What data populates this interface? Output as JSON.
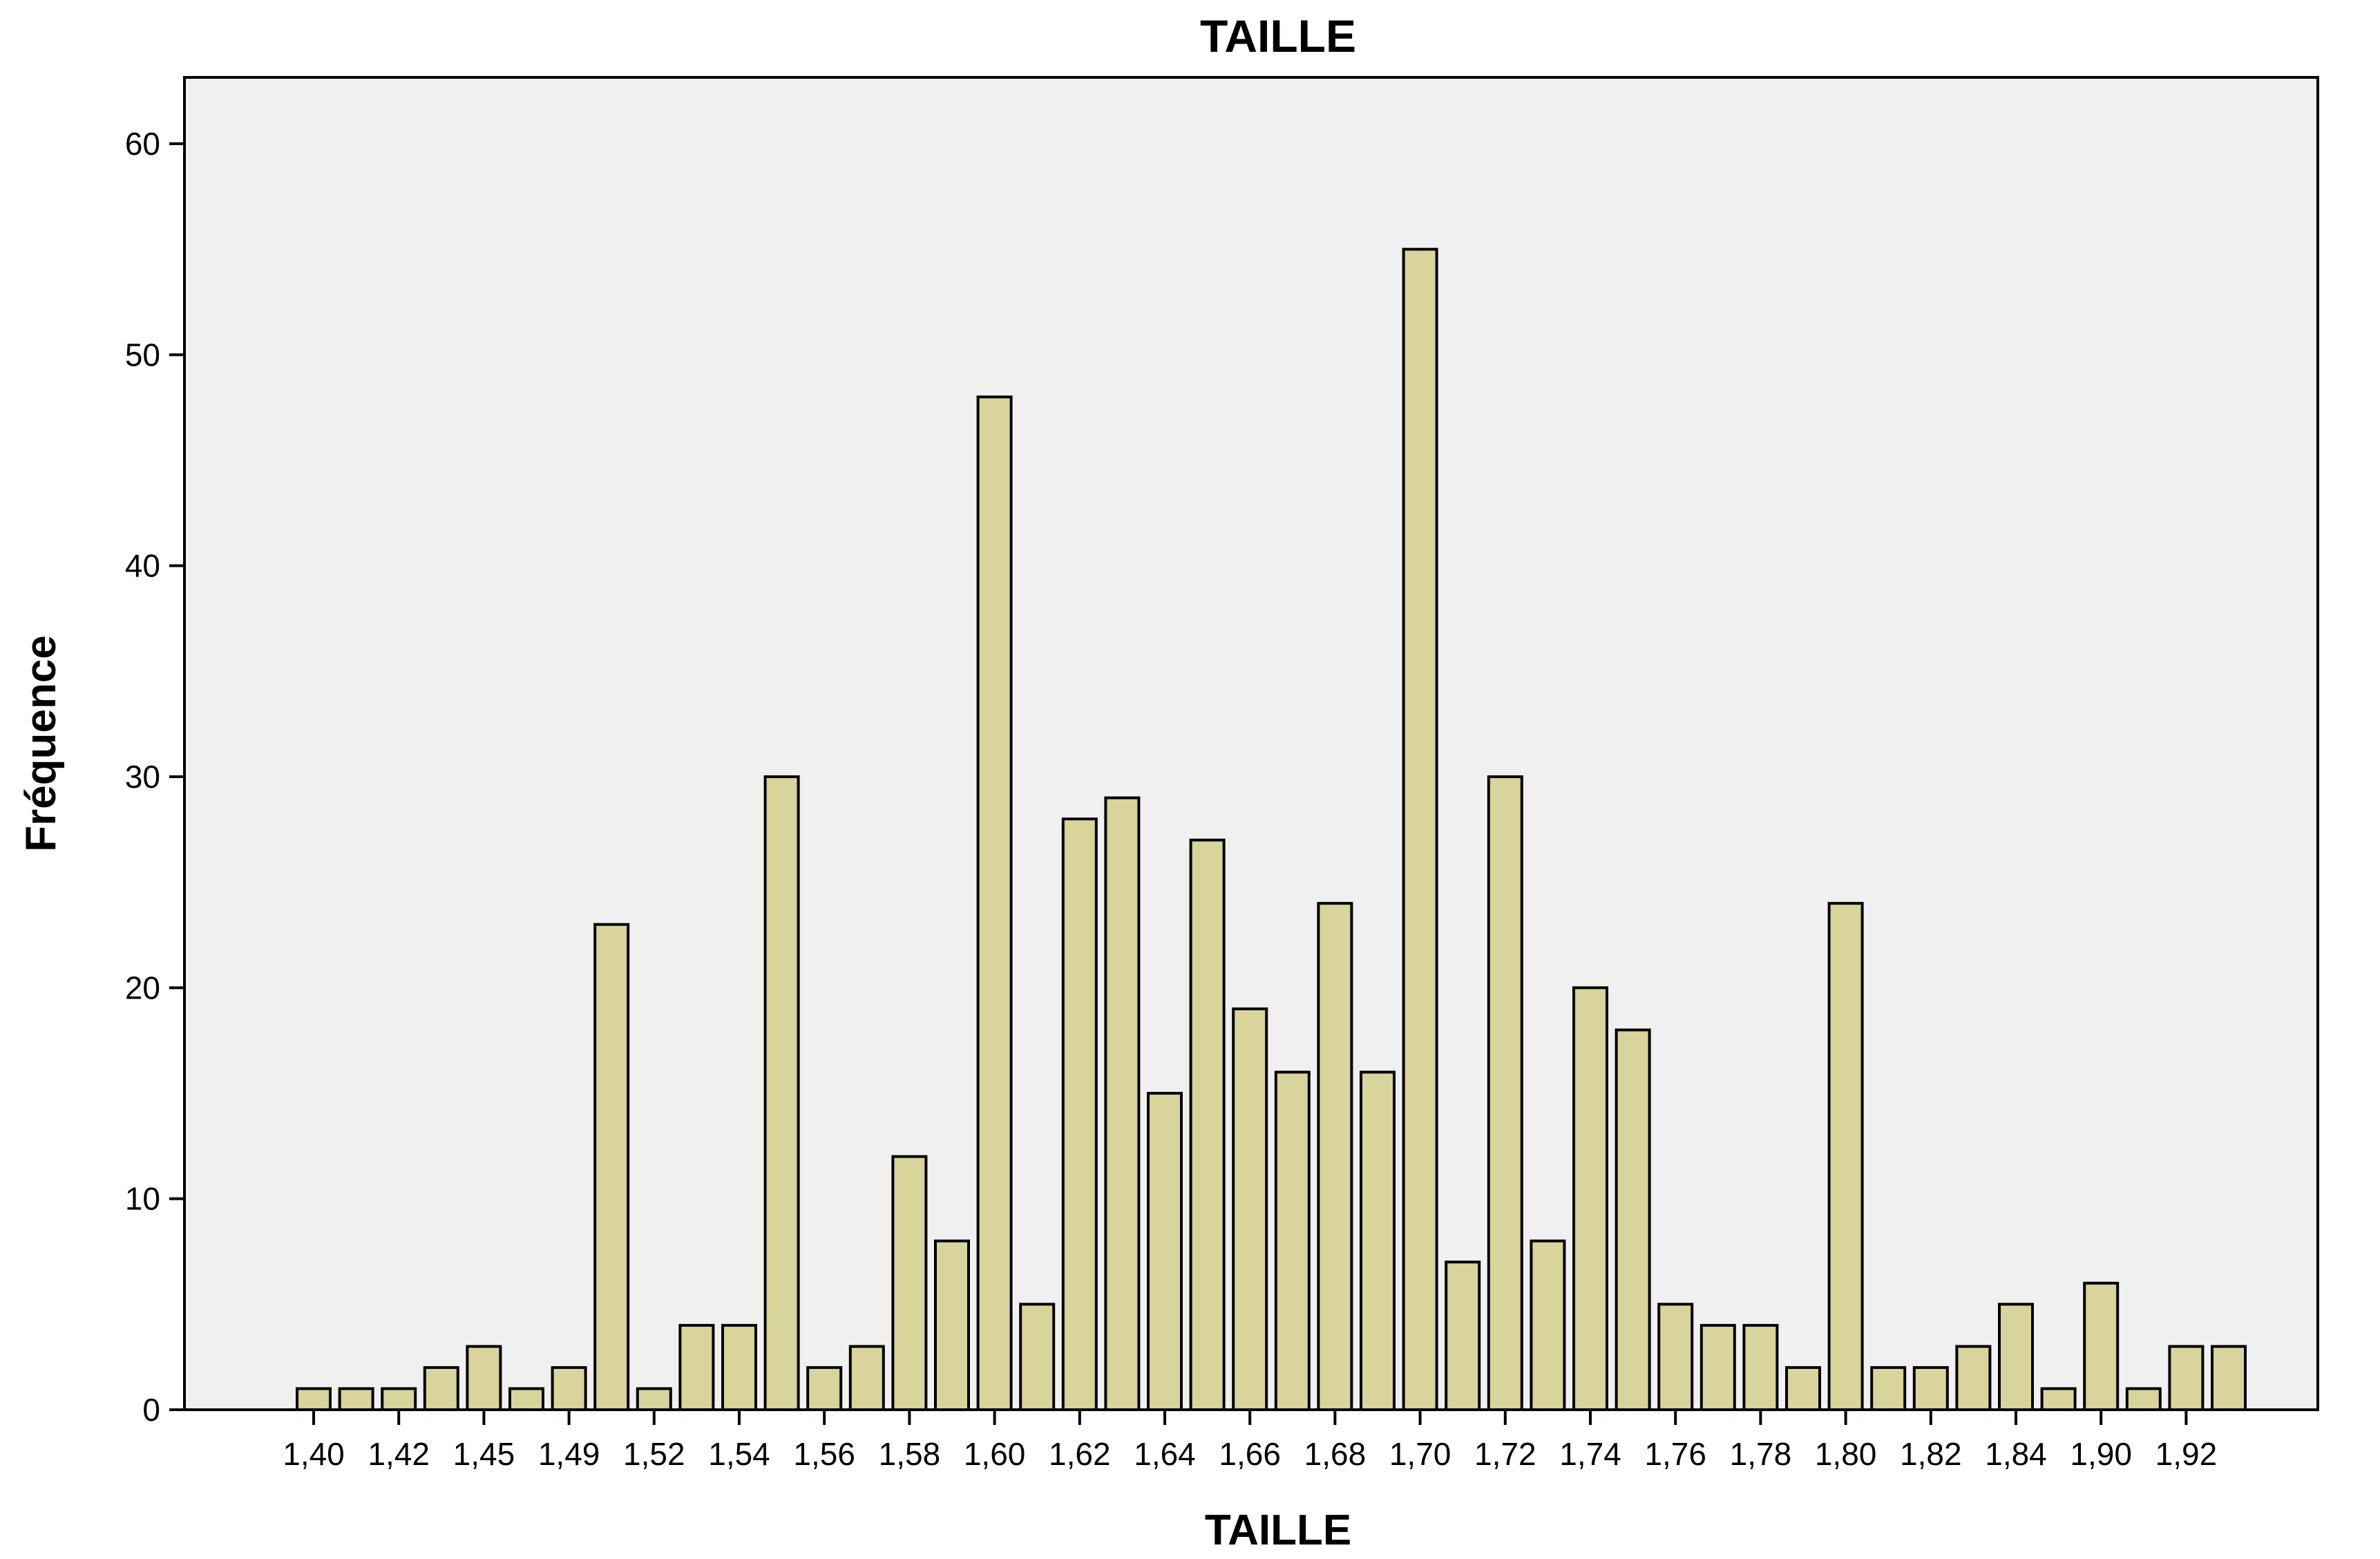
{
  "chart_data": {
    "type": "bar",
    "title": "TAILLE",
    "xlabel": "TAILLE",
    "ylabel": "Fréquence",
    "ylim": [
      0,
      63
    ],
    "yticks": [
      0,
      10,
      20,
      30,
      40,
      50,
      60
    ],
    "x_tick_labels": [
      "1,40",
      "1,42",
      "1,45",
      "1,49",
      "1,52",
      "1,54",
      "1,56",
      "1,58",
      "1,60",
      "1,62",
      "1,64",
      "1,66",
      "1,68",
      "1,70",
      "1,72",
      "1,74",
      "1,76",
      "1,78",
      "1,80",
      "1,82",
      "1,84",
      "1,90",
      "1,92"
    ],
    "values": [
      1,
      1,
      1,
      2,
      3,
      1,
      2,
      23,
      1,
      4,
      4,
      30,
      2,
      3,
      12,
      8,
      48,
      5,
      28,
      29,
      15,
      27,
      19,
      16,
      24,
      16,
      55,
      7,
      30,
      8,
      20,
      18,
      5,
      4,
      4,
      2,
      24,
      2,
      2,
      3,
      5,
      1,
      6,
      1,
      3,
      3
    ],
    "grid": false,
    "legend": "none",
    "colors": {
      "bar_fill": "#d9d39c",
      "plot_background": "#f0f0f0",
      "stroke": "#000000"
    }
  }
}
